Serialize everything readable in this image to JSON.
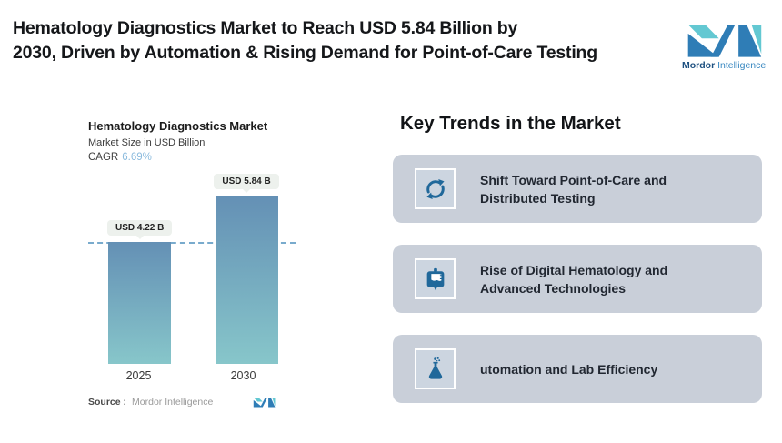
{
  "header": {
    "title_line1": "Hematology Diagnostics Market to Reach USD 5.84 Billion by",
    "title_line2": "2030, Driven by Automation & Rising Demand for Point-of-Care Testing",
    "logo": {
      "brand_bold": "Mordor",
      "brand_regular": "Intelligence"
    }
  },
  "chart": {
    "title": "Hematology Diagnostics Market",
    "subtitle": "Market Size in USD Billion",
    "cagr_label": "CAGR",
    "cagr_value": "6.69%",
    "source_label": "Source :",
    "source_value": "Mordor Intelligence"
  },
  "chart_data": {
    "type": "bar",
    "title": "Hematology Diagnostics Market",
    "ylabel": "Market Size in USD Billion",
    "cagr": "6.69%",
    "categories": [
      "2025",
      "2030"
    ],
    "values": [
      4.22,
      5.84
    ],
    "bar_labels": [
      "USD 4.22 B",
      "USD 5.84 B"
    ],
    "reference_line": 4.22,
    "ylim": [
      0,
      5.84
    ],
    "grid": false,
    "legend": "none",
    "colors": {
      "bar_top": "#6490b5",
      "bar_bottom": "#87c6ca",
      "dash_line": "#79abcd"
    }
  },
  "trends": {
    "heading": "Key Trends in the Market",
    "cards": [
      {
        "icon": "cycle-arrows-icon",
        "text": "Shift Toward Point-of-Care and Distributed Testing"
      },
      {
        "icon": "blood-bag-icon",
        "text": "Rise of Digital Hematology and Advanced Technologies"
      },
      {
        "icon": "flask-icon",
        "text": "utomation and Lab Efficiency"
      }
    ]
  }
}
